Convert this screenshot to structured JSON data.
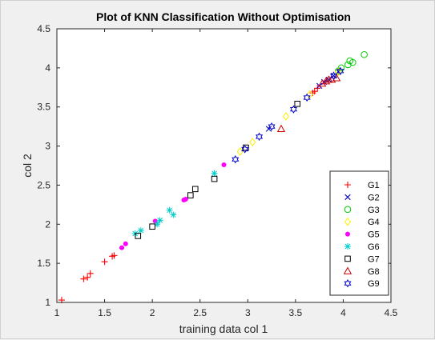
{
  "chart_data": {
    "type": "scatter",
    "title": "Plot of KNN Classification Without Optimisation",
    "xlabel": "training data col 1",
    "ylabel": "col 2",
    "xlim": [
      1,
      4.5
    ],
    "ylim": [
      1,
      4.5
    ],
    "xticks": [
      "1",
      "1.5",
      "2",
      "2.5",
      "3",
      "3.5",
      "4",
      "4.5"
    ],
    "yticks": [
      "1",
      "1.5",
      "2",
      "2.5",
      "3",
      "3.5",
      "4",
      "4.5"
    ],
    "grid": false,
    "legend_position": "bottom-right",
    "series": [
      {
        "name": "G1",
        "marker": "plus",
        "color": "#ff0000",
        "x": [
          1.05,
          1.28,
          1.32,
          1.35,
          1.5,
          1.58,
          1.6,
          3.68,
          3.7,
          3.73
        ],
        "y": [
          1.03,
          1.3,
          1.32,
          1.37,
          1.52,
          1.59,
          1.6,
          3.68,
          3.7,
          3.74
        ]
      },
      {
        "name": "G2",
        "marker": "x",
        "color": "#0000cc",
        "x": [
          3.22,
          3.75,
          3.8,
          3.85,
          3.9,
          3.95
        ],
        "y": [
          3.22,
          3.77,
          3.82,
          3.85,
          3.9,
          3.95
        ]
      },
      {
        "name": "G3",
        "marker": "circle",
        "color": "#00cc00",
        "x": [
          3.95,
          3.98,
          4.05,
          4.07,
          4.1,
          4.22
        ],
        "y": [
          3.96,
          4.0,
          4.04,
          4.09,
          4.07,
          4.17
        ]
      },
      {
        "name": "G4",
        "marker": "diamond",
        "color": "#ffee00",
        "x": [
          2.92,
          3.05,
          3.4,
          3.65,
          3.95
        ],
        "y": [
          2.93,
          3.05,
          3.38,
          3.66,
          3.95
        ]
      },
      {
        "name": "G5",
        "marker": "dot",
        "color": "#ff00ff",
        "x": [
          1.68,
          1.72,
          2.03,
          2.33,
          2.35,
          2.75
        ],
        "y": [
          1.7,
          1.75,
          2.04,
          2.31,
          2.32,
          2.76
        ]
      },
      {
        "name": "G6",
        "marker": "asterisk",
        "color": "#00cccc",
        "x": [
          1.82,
          1.88,
          2.05,
          2.08,
          2.18,
          2.22,
          2.65
        ],
        "y": [
          1.88,
          1.92,
          2.0,
          2.05,
          2.18,
          2.12,
          2.65
        ]
      },
      {
        "name": "G7",
        "marker": "square",
        "color": "#000000",
        "x": [
          1.85,
          2.0,
          2.4,
          2.45,
          2.65,
          2.98,
          3.52
        ],
        "y": [
          1.85,
          1.97,
          2.37,
          2.45,
          2.58,
          2.98,
          3.54
        ]
      },
      {
        "name": "G8",
        "marker": "triangle",
        "color": "#cc0000",
        "x": [
          3.35,
          3.78,
          3.82,
          3.85,
          3.88,
          3.93
        ],
        "y": [
          3.22,
          3.8,
          3.83,
          3.85,
          3.85,
          3.87
        ]
      },
      {
        "name": "G9",
        "marker": "hexagram",
        "color": "#0000cc",
        "x": [
          2.87,
          2.97,
          3.12,
          3.25,
          3.48,
          3.62,
          3.9,
          3.97
        ],
        "y": [
          2.83,
          2.96,
          3.12,
          3.25,
          3.47,
          3.62,
          3.9,
          3.96
        ]
      }
    ]
  }
}
